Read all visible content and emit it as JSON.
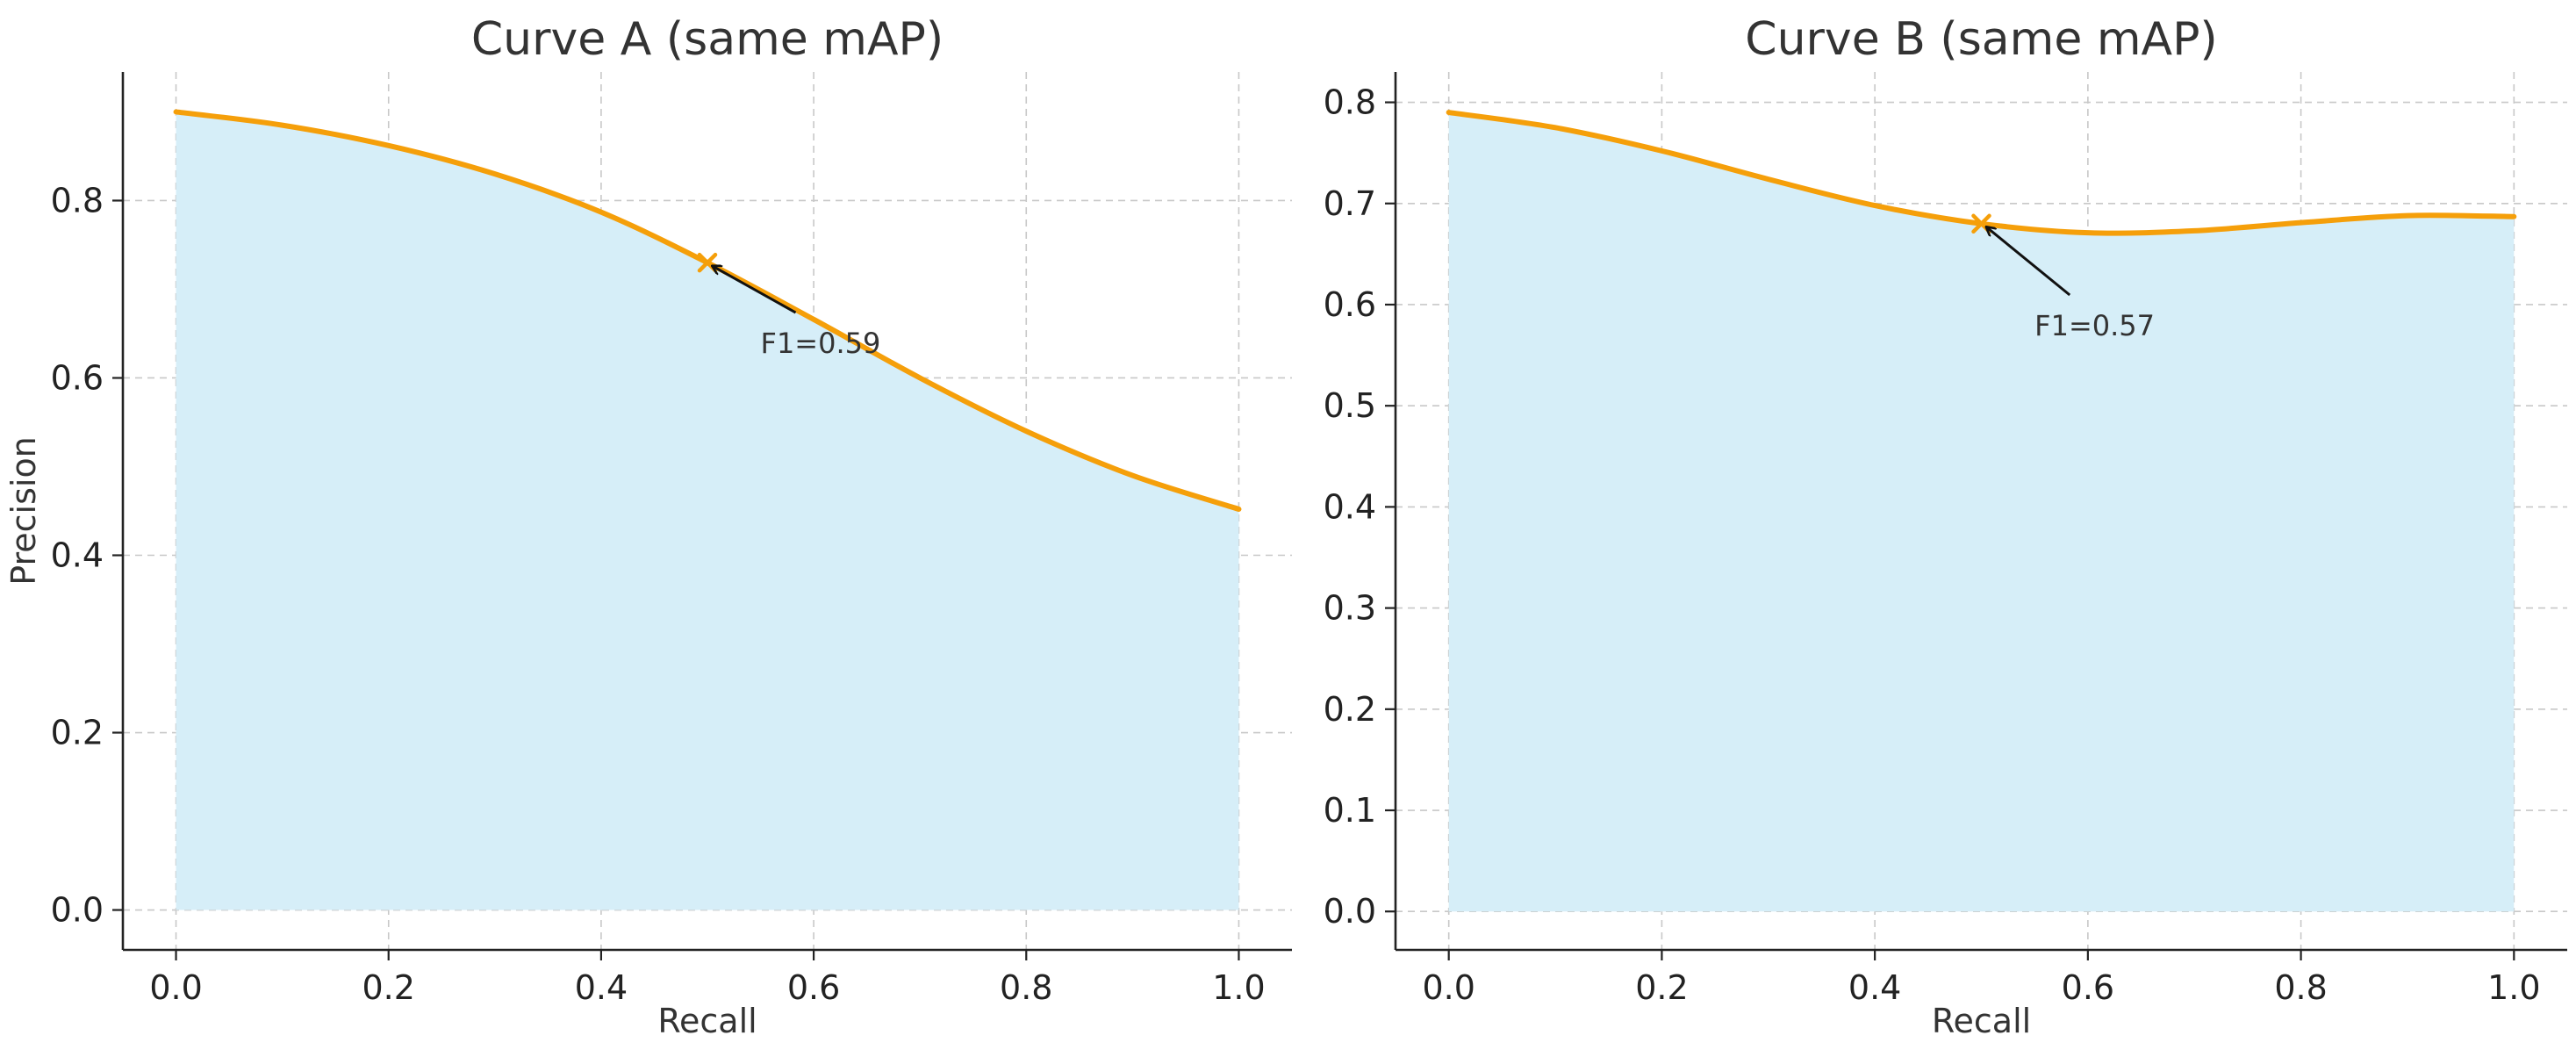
{
  "chart_data": [
    {
      "type": "area",
      "title": "Curve A (same mAP)",
      "xlabel": "Recall",
      "ylabel": "Precision",
      "xlim": [
        -0.05,
        1.05
      ],
      "ylim": [
        -0.045,
        0.945
      ],
      "xticks": [
        "0.0",
        "0.2",
        "0.4",
        "0.6",
        "0.8",
        "1.0"
      ],
      "yticks": [
        "0.0",
        "0.2",
        "0.4",
        "0.6",
        "0.8"
      ],
      "grid": true,
      "x": [
        0.0,
        0.1,
        0.2,
        0.3,
        0.4,
        0.5,
        0.6,
        0.7,
        0.8,
        0.9,
        1.0
      ],
      "y": [
        0.9,
        0.885,
        0.862,
        0.83,
        0.787,
        0.73,
        0.666,
        0.6,
        0.54,
        0.49,
        0.452
      ],
      "line_color": "#f59f0a",
      "fill_color": "#d6eef8",
      "marker": {
        "x": 0.5,
        "y": 0.73
      },
      "annotation": {
        "text": "F1=0.59",
        "x": 0.5,
        "y": 0.73,
        "text_x": 0.55,
        "text_y": 0.64
      }
    },
    {
      "type": "area",
      "title": "Curve B (same mAP)",
      "xlabel": "Recall",
      "ylabel": "",
      "xlim": [
        -0.05,
        1.05
      ],
      "ylim": [
        -0.038,
        0.83
      ],
      "xticks": [
        "0.0",
        "0.2",
        "0.4",
        "0.6",
        "0.8",
        "1.0"
      ],
      "yticks": [
        "0.0",
        "0.1",
        "0.2",
        "0.3",
        "0.4",
        "0.5",
        "0.6",
        "0.7",
        "0.8"
      ],
      "grid": true,
      "x": [
        0.0,
        0.1,
        0.2,
        0.3,
        0.4,
        0.5,
        0.6,
        0.7,
        0.8,
        0.9,
        1.0
      ],
      "y": [
        0.79,
        0.775,
        0.752,
        0.724,
        0.698,
        0.68,
        0.671,
        0.673,
        0.681,
        0.688,
        0.687
      ],
      "line_color": "#f59f0a",
      "fill_color": "#d6eef8",
      "marker": {
        "x": 0.5,
        "y": 0.68
      },
      "annotation": {
        "text": "F1=0.57",
        "x": 0.5,
        "y": 0.68,
        "text_x": 0.55,
        "text_y": 0.58
      }
    }
  ]
}
